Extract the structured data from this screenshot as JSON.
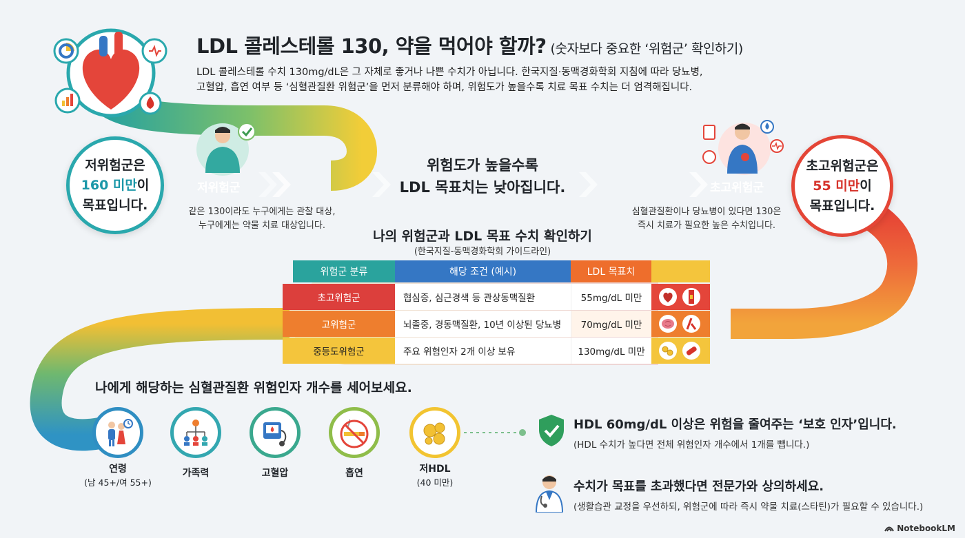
{
  "title": {
    "main": "LDL 콜레스테롤 130, 약을 먹어야 할까?",
    "sub": "(숫자보다 중요한 ‘위험군’ 확인하기)"
  },
  "intro": {
    "line1": "LDL 콜레스테롤 수치 130mg/dL은 그 자체로 좋거나 나쁜 수치가 아닙니다. 한국지질·동맥경화학회 지침에 따라 당뇨병,",
    "line2": "고혈압, 흡연 여부 등 ‘심혈관질환 위험군’을 먼저 분류해야 하며, 위험도가 높을수록 치료 목표 수치는 더 엄격해집니다."
  },
  "low_risk": {
    "card_pre": "저위험군은",
    "card_highlight": "160 미만",
    "card_mid": "이",
    "card_post": "목표입니다.",
    "band_label": "저위험군",
    "note_line1": "같은 130이라도 누구에게는 관찰 대상,",
    "note_line2": "누구에게는 약물 치료 대상입니다."
  },
  "center_message": {
    "line1": "위험도가 높을수록",
    "line2": "LDL 목표치는 낮아집니다."
  },
  "high_risk": {
    "card_pre": "초고위험군은",
    "card_highlight": "55 미만",
    "card_mid": "이",
    "card_post": "목표입니다.",
    "band_label": "초고위험군",
    "note_line1": "심혈관질환이나 당뇨병이 있다면 130은",
    "note_line2": "즉시 치료가 필요한 높은 수치입니다."
  },
  "table": {
    "title": "나의 위험군과 LDL 목표 수치 확인하기",
    "subtitle": "(한국지질-동맥경화학회 가이드라인)",
    "headers": [
      "위험군 분류",
      "해당 조건 (예시)",
      "LDL 목표치"
    ],
    "rows": [
      {
        "group": "초고위험군",
        "condition": "협심증, 심근경색 등 관상동맥질환",
        "target": "55mg/dL 미만",
        "color": "#dc3f3c"
      },
      {
        "group": "고위험군",
        "condition": "뇌졸중, 경동맥질환, 10년 이상된 당뇨병",
        "target": "70mg/dL 미만",
        "color": "#ee7e2e"
      },
      {
        "group": "중등도위험군",
        "condition": "주요 위험인자 2개 이상 보유",
        "target": "130mg/dL 미만",
        "color": "#f4c53c"
      }
    ]
  },
  "risk_factors": {
    "title": "나에게 해당하는 심혈관질환 위험인자 개수를 세어보세요.",
    "items": [
      {
        "label": "연령",
        "sub": "(남 45+/여 55+)",
        "icon": "elderly-couple-icon",
        "color": "#2f8ec2"
      },
      {
        "label": "가족력",
        "sub": "",
        "icon": "family-tree-icon",
        "color": "#33a7b0"
      },
      {
        "label": "고혈압",
        "sub": "",
        "icon": "blood-pressure-monitor-icon",
        "color": "#3aa88e"
      },
      {
        "label": "흡연",
        "sub": "",
        "icon": "no-smoking-icon",
        "color": "#8fbd4a"
      },
      {
        "label": "저HDL",
        "sub": "(40 미만)",
        "icon": "lipid-molecule-icon",
        "color": "#f2c431"
      }
    ]
  },
  "protective": {
    "head": "HDL 60mg/dL 이상은 위험을 줄여주는 ‘보호 인자’입니다.",
    "sub": "(HDL 수치가 높다면 전체 위험인자 개수에서 1개를 뺍니다.)"
  },
  "consult": {
    "head": "수치가 목표를 초과했다면 전문가와 상의하세요.",
    "sub": "(생활습관 교정을 우선하되, 위험군에 따라 즉시 약물 치료(스타틴)가 필요할 수 있습니다.)"
  },
  "brand": "NotebookLM"
}
